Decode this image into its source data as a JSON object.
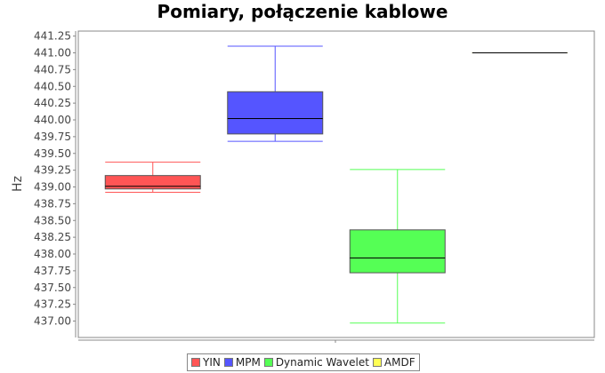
{
  "chart_data": {
    "type": "box",
    "title": "Pomiary, połączenie kablowe",
    "xlabel": "",
    "ylabel": "Hz",
    "ylim": [
      436.8,
      441.3
    ],
    "yticks": [
      "437.00",
      "437.25",
      "437.50",
      "437.75",
      "438.00",
      "438.25",
      "438.50",
      "438.75",
      "439.00",
      "439.25",
      "439.50",
      "439.75",
      "440.00",
      "440.25",
      "440.50",
      "440.75",
      "441.00",
      "441.25"
    ],
    "grid": false,
    "legend_position": "bottom",
    "series": [
      {
        "name": "YIN",
        "color": "#ff5555",
        "min": 438.92,
        "q1": 438.97,
        "median": 439.01,
        "q3": 439.17,
        "max": 439.37
      },
      {
        "name": "MPM",
        "color": "#5555ff",
        "min": 439.68,
        "q1": 439.79,
        "median": 440.02,
        "q3": 440.42,
        "max": 441.1
      },
      {
        "name": "Dynamic Wavelet",
        "color": "#55ff55",
        "min": 436.97,
        "q1": 437.72,
        "median": 437.94,
        "q3": 438.36,
        "max": 439.26
      },
      {
        "name": "AMDF",
        "color": "#ffff55",
        "min": 441.0,
        "q1": 441.0,
        "median": 441.0,
        "q3": 441.0,
        "max": 441.0
      }
    ]
  }
}
